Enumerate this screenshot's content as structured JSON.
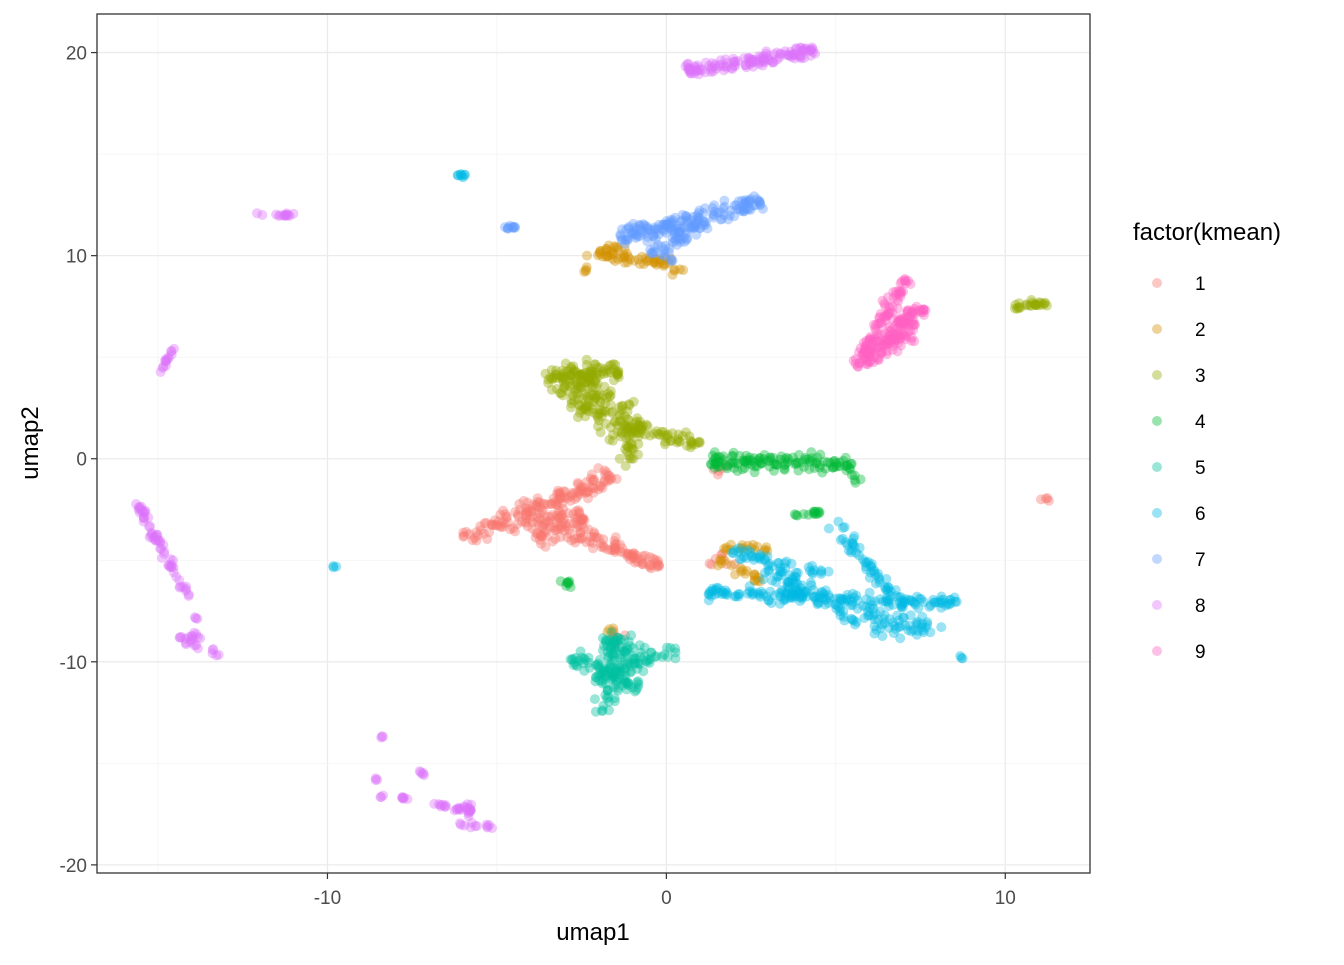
{
  "chart_data": {
    "type": "scatter",
    "title": "",
    "xlabel": "umap1",
    "ylabel": "umap2",
    "xlim": [
      -16.8,
      12.5
    ],
    "ylim": [
      -20.4,
      21.9
    ],
    "x_ticks": [
      -10,
      0,
      10
    ],
    "x_tick_labels": [
      "-10",
      "0",
      "10"
    ],
    "y_ticks": [
      -20,
      -10,
      0,
      10,
      20
    ],
    "y_tick_labels": [
      "-20",
      "-10",
      "0",
      "10",
      "20"
    ],
    "grid": true,
    "point_alpha": 0.4,
    "legend": {
      "title": "factor(kmean)",
      "placement": "right",
      "entries": [
        {
          "label": "1",
          "color": "#F8766D"
        },
        {
          "label": "2",
          "color": "#D39200"
        },
        {
          "label": "3",
          "color": "#93AA00"
        },
        {
          "label": "4",
          "color": "#00BA38"
        },
        {
          "label": "5",
          "color": "#00C19F"
        },
        {
          "label": "6",
          "color": "#00B9E3"
        },
        {
          "label": "7",
          "color": "#619CFF"
        },
        {
          "label": "8",
          "color": "#DB72FB"
        },
        {
          "label": "9",
          "color": "#FF61C3"
        }
      ]
    },
    "clusters": [
      {
        "series": "1",
        "kind": "band",
        "from": [
          -5.9,
          -4.0
        ],
        "to": [
          -1.6,
          -0.8
        ],
        "width": 0.5,
        "n": 140
      },
      {
        "series": "1",
        "kind": "band",
        "from": [
          -4.0,
          -3.6
        ],
        "to": [
          -2.4,
          -2.8
        ],
        "width": 0.9,
        "n": 90
      },
      {
        "series": "1",
        "kind": "band",
        "from": [
          -2.6,
          -3.7
        ],
        "to": [
          -0.2,
          -5.3
        ],
        "width": 0.4,
        "n": 70
      },
      {
        "series": "1",
        "kind": "blob",
        "center": [
          -1.5,
          -8.7
        ],
        "spread": [
          0.15,
          0.2
        ],
        "n": 8
      },
      {
        "series": "1",
        "kind": "blob",
        "center": [
          11.2,
          -2.0
        ],
        "spread": [
          0.06,
          0.06
        ],
        "n": 4
      },
      {
        "series": "1",
        "kind": "blob",
        "center": [
          1.5,
          -4.9
        ],
        "spread": [
          0.2,
          0.2
        ],
        "n": 8
      },
      {
        "series": "1",
        "kind": "blob",
        "center": [
          1.6,
          -0.6
        ],
        "spread": [
          0.15,
          0.15
        ],
        "n": 5
      },
      {
        "series": "2",
        "kind": "band",
        "from": [
          -1.8,
          10.0
        ],
        "to": [
          0.2,
          9.6
        ],
        "width": 0.3,
        "n": 40
      },
      {
        "series": "2",
        "kind": "band",
        "from": [
          -2.3,
          9.9
        ],
        "to": [
          -1.3,
          10.5
        ],
        "width": 0.25,
        "n": 20
      },
      {
        "series": "2",
        "kind": "blob",
        "center": [
          -2.3,
          9.3
        ],
        "spread": [
          0.08,
          0.08
        ],
        "n": 4
      },
      {
        "series": "2",
        "kind": "blob",
        "center": [
          0.3,
          9.2
        ],
        "spread": [
          0.1,
          0.15
        ],
        "n": 5
      },
      {
        "series": "2",
        "kind": "band",
        "from": [
          1.7,
          -4.4
        ],
        "to": [
          3.0,
          -4.4
        ],
        "width": 0.2,
        "n": 18
      },
      {
        "series": "2",
        "kind": "band",
        "from": [
          1.5,
          -5.0
        ],
        "to": [
          2.8,
          -6.0
        ],
        "width": 0.25,
        "n": 20
      },
      {
        "series": "2",
        "kind": "blob",
        "center": [
          -1.6,
          -8.5
        ],
        "spread": [
          0.1,
          0.1
        ],
        "n": 4
      },
      {
        "series": "3",
        "kind": "band",
        "from": [
          -3.6,
          3.9
        ],
        "to": [
          -1.4,
          4.3
        ],
        "width": 0.6,
        "n": 90
      },
      {
        "series": "3",
        "kind": "band",
        "from": [
          -2.8,
          3.8
        ],
        "to": [
          -1.0,
          1.2
        ],
        "width": 0.9,
        "n": 140
      },
      {
        "series": "3",
        "kind": "band",
        "from": [
          -1.4,
          1.6
        ],
        "to": [
          1.0,
          0.7
        ],
        "width": 0.4,
        "n": 50
      },
      {
        "series": "3",
        "kind": "band",
        "from": [
          -1.0,
          1.0
        ],
        "to": [
          -1.2,
          -0.5
        ],
        "width": 0.3,
        "n": 20
      },
      {
        "series": "3",
        "kind": "band",
        "from": [
          10.2,
          7.5
        ],
        "to": [
          11.2,
          7.7
        ],
        "width": 0.15,
        "n": 25
      },
      {
        "series": "4",
        "kind": "band",
        "from": [
          1.3,
          -0.1
        ],
        "to": [
          5.5,
          -0.3
        ],
        "width": 0.45,
        "n": 130
      },
      {
        "series": "4",
        "kind": "blob",
        "center": [
          5.6,
          -1.0
        ],
        "spread": [
          0.08,
          0.1
        ],
        "n": 4
      },
      {
        "series": "4",
        "kind": "band",
        "from": [
          3.8,
          -2.8
        ],
        "to": [
          4.6,
          -2.6
        ],
        "width": 0.15,
        "n": 14
      },
      {
        "series": "4",
        "kind": "blob",
        "center": [
          -2.9,
          -6.2
        ],
        "spread": [
          0.1,
          0.15
        ],
        "n": 8
      },
      {
        "series": "5",
        "kind": "band",
        "from": [
          -1.8,
          -12.6
        ],
        "to": [
          -1.6,
          -8.8
        ],
        "width": 0.4,
        "n": 60
      },
      {
        "series": "5",
        "kind": "band",
        "from": [
          -2.8,
          -9.8
        ],
        "to": [
          -0.7,
          -11.4
        ],
        "width": 0.4,
        "n": 50
      },
      {
        "series": "5",
        "kind": "band",
        "from": [
          -2.2,
          -10.8
        ],
        "to": [
          0.3,
          -9.4
        ],
        "width": 0.4,
        "n": 50
      },
      {
        "series": "5",
        "kind": "blob",
        "center": [
          -1.3,
          -9.5
        ],
        "spread": [
          0.35,
          0.4
        ],
        "n": 40
      },
      {
        "series": "6",
        "kind": "band",
        "from": [
          1.2,
          -6.6
        ],
        "to": [
          8.6,
          -7.1
        ],
        "width": 0.35,
        "n": 140
      },
      {
        "series": "6",
        "kind": "band",
        "from": [
          2.8,
          -5.3
        ],
        "to": [
          6.5,
          -8.2
        ],
        "width": 0.55,
        "n": 90
      },
      {
        "series": "6",
        "kind": "band",
        "from": [
          1.9,
          -4.6
        ],
        "to": [
          4.8,
          -5.6
        ],
        "width": 0.3,
        "n": 40
      },
      {
        "series": "6",
        "kind": "band",
        "from": [
          4.9,
          -3.1
        ],
        "to": [
          7.6,
          -8.8
        ],
        "width": 0.35,
        "n": 70
      },
      {
        "series": "6",
        "kind": "blob",
        "center": [
          6.8,
          -8.3
        ],
        "spread": [
          0.5,
          0.3
        ],
        "n": 30
      },
      {
        "series": "6",
        "kind": "blob",
        "center": [
          -6.0,
          14.0
        ],
        "spread": [
          0.1,
          0.08
        ],
        "n": 8
      },
      {
        "series": "6",
        "kind": "blob",
        "center": [
          -9.8,
          -5.3
        ],
        "spread": [
          0.04,
          0.04
        ],
        "n": 3
      },
      {
        "series": "6",
        "kind": "blob",
        "center": [
          8.7,
          -9.8
        ],
        "spread": [
          0.04,
          0.04
        ],
        "n": 3
      },
      {
        "series": "6",
        "kind": "blob",
        "center": [
          4.0,
          -6.6
        ],
        "spread": [
          0.1,
          0.1
        ],
        "n": 4
      },
      {
        "series": "7",
        "kind": "band",
        "from": [
          -1.4,
          10.8
        ],
        "to": [
          2.8,
          12.7
        ],
        "width": 0.5,
        "n": 150
      },
      {
        "series": "7",
        "kind": "band",
        "from": [
          -0.4,
          10.0
        ],
        "to": [
          1.2,
          11.8
        ],
        "width": 0.5,
        "n": 50
      },
      {
        "series": "7",
        "kind": "blob",
        "center": [
          -4.6,
          11.4
        ],
        "spread": [
          0.2,
          0.07
        ],
        "n": 10
      },
      {
        "series": "7",
        "kind": "blob",
        "center": [
          0.2,
          9.7
        ],
        "spread": [
          0.06,
          0.06
        ],
        "n": 3
      },
      {
        "series": "8",
        "kind": "band",
        "from": [
          0.6,
          19.1
        ],
        "to": [
          4.4,
          20.1
        ],
        "width": 0.35,
        "n": 130
      },
      {
        "series": "8",
        "kind": "blob",
        "center": [
          -11.4,
          12.0
        ],
        "spread": [
          0.3,
          0.05
        ],
        "n": 14
      },
      {
        "series": "8",
        "kind": "band",
        "from": [
          -14.9,
          4.2
        ],
        "to": [
          -14.5,
          5.6
        ],
        "width": 0.1,
        "n": 14
      },
      {
        "series": "8",
        "kind": "band",
        "from": [
          -15.6,
          -2.2
        ],
        "to": [
          -14.1,
          -6.8
        ],
        "width": 0.15,
        "n": 60
      },
      {
        "series": "8",
        "kind": "band",
        "from": [
          -14.3,
          -9.0
        ],
        "to": [
          -13.8,
          -8.6
        ],
        "width": 0.25,
        "n": 16
      },
      {
        "series": "8",
        "kind": "blob",
        "center": [
          -13.9,
          -9.2
        ],
        "spread": [
          0.05,
          0.1
        ],
        "n": 3
      },
      {
        "series": "8",
        "kind": "blob",
        "center": [
          -13.3,
          -9.7
        ],
        "spread": [
          0.06,
          0.15
        ],
        "n": 5
      },
      {
        "series": "8",
        "kind": "blob",
        "center": [
          -13.9,
          -7.8
        ],
        "spread": [
          0.05,
          0.08
        ],
        "n": 3
      },
      {
        "series": "8",
        "kind": "blob",
        "center": [
          -8.4,
          -13.7
        ],
        "spread": [
          0.04,
          0.04
        ],
        "n": 3
      },
      {
        "series": "8",
        "kind": "blob",
        "center": [
          -8.6,
          -15.8
        ],
        "spread": [
          0.04,
          0.05
        ],
        "n": 3
      },
      {
        "series": "8",
        "kind": "blob",
        "center": [
          -8.4,
          -16.6
        ],
        "spread": [
          0.04,
          0.04
        ],
        "n": 3
      },
      {
        "series": "8",
        "kind": "band",
        "from": [
          -7.9,
          -16.7
        ],
        "to": [
          -7.6,
          -16.7
        ],
        "width": 0.08,
        "n": 6
      },
      {
        "series": "8",
        "kind": "band",
        "from": [
          -7.3,
          -15.4
        ],
        "to": [
          -7.1,
          -15.6
        ],
        "width": 0.06,
        "n": 5
      },
      {
        "series": "8",
        "kind": "band",
        "from": [
          -6.9,
          -17.0
        ],
        "to": [
          -5.7,
          -17.4
        ],
        "width": 0.15,
        "n": 20
      },
      {
        "series": "8",
        "kind": "blob",
        "center": [
          -5.8,
          -17.2
        ],
        "spread": [
          0.08,
          0.15
        ],
        "n": 10
      },
      {
        "series": "8",
        "kind": "band",
        "from": [
          -6.1,
          -18.0
        ],
        "to": [
          -5.1,
          -18.1
        ],
        "width": 0.12,
        "n": 12
      },
      {
        "series": "9",
        "kind": "band",
        "from": [
          5.6,
          4.5
        ],
        "to": [
          7.1,
          8.9
        ],
        "width": 0.25,
        "n": 80
      },
      {
        "series": "9",
        "kind": "band",
        "from": [
          5.8,
          4.7
        ],
        "to": [
          7.6,
          7.6
        ],
        "width": 0.45,
        "n": 110
      },
      {
        "series": "9",
        "kind": "blob",
        "center": [
          6.8,
          6.2
        ],
        "spread": [
          0.35,
          0.5
        ],
        "n": 40
      }
    ]
  }
}
